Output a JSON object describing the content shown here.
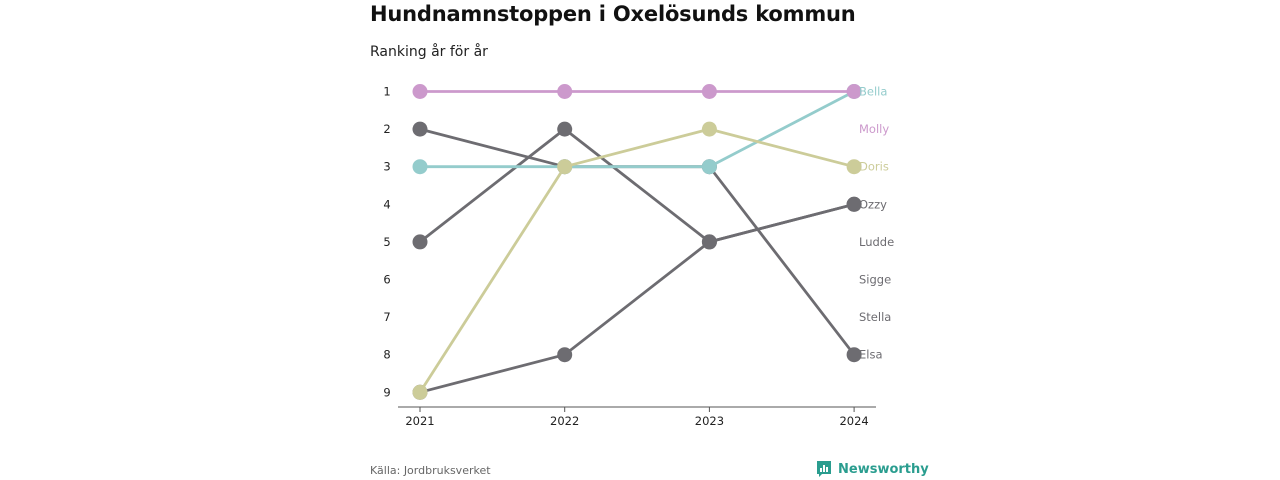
{
  "title": "Hundnamnstoppen i Oxelösunds kommun",
  "subtitle": "Ranking år för år",
  "source": "Källa: Jordbruksverket",
  "brand": {
    "name": "Newsworthy",
    "icon": "bar-chart-icon",
    "color": "#2a9d8f"
  },
  "chart_data": {
    "type": "line",
    "x": [
      "2021",
      "2022",
      "2023",
      "2024"
    ],
    "ylim": [
      1,
      9
    ],
    "y_reversed": true,
    "y_ticks": [
      "1",
      "2",
      "3",
      "4",
      "5",
      "6",
      "7",
      "8",
      "9"
    ],
    "grid": false,
    "legend": "right, end labels",
    "series": [
      {
        "name": "Bella",
        "values": [
          3,
          3,
          3,
          1
        ],
        "color": "#94cccc"
      },
      {
        "name": "Molly",
        "values": [
          1,
          1,
          1,
          1
        ],
        "color": "#cc99cc"
      },
      {
        "name": "Doris",
        "values": [
          9,
          3,
          2,
          3
        ],
        "color": "#cccc99"
      },
      {
        "name": "Ozzy",
        "values": [
          5,
          2,
          5,
          4
        ],
        "color": "#6d6c71"
      },
      {
        "name": "Ludde",
        "values": [
          9,
          8,
          5,
          4
        ],
        "color": "#6d6c71"
      },
      {
        "name": "Sigge",
        "values": [
          null,
          null,
          null,
          null
        ],
        "color": "#6d6c71"
      },
      {
        "name": "Stella",
        "values": [
          null,
          null,
          null,
          null
        ],
        "color": "#6d6c71"
      },
      {
        "name": "Elsa",
        "values": [
          2,
          3,
          3,
          8
        ],
        "color": "#6d6c71"
      }
    ]
  }
}
